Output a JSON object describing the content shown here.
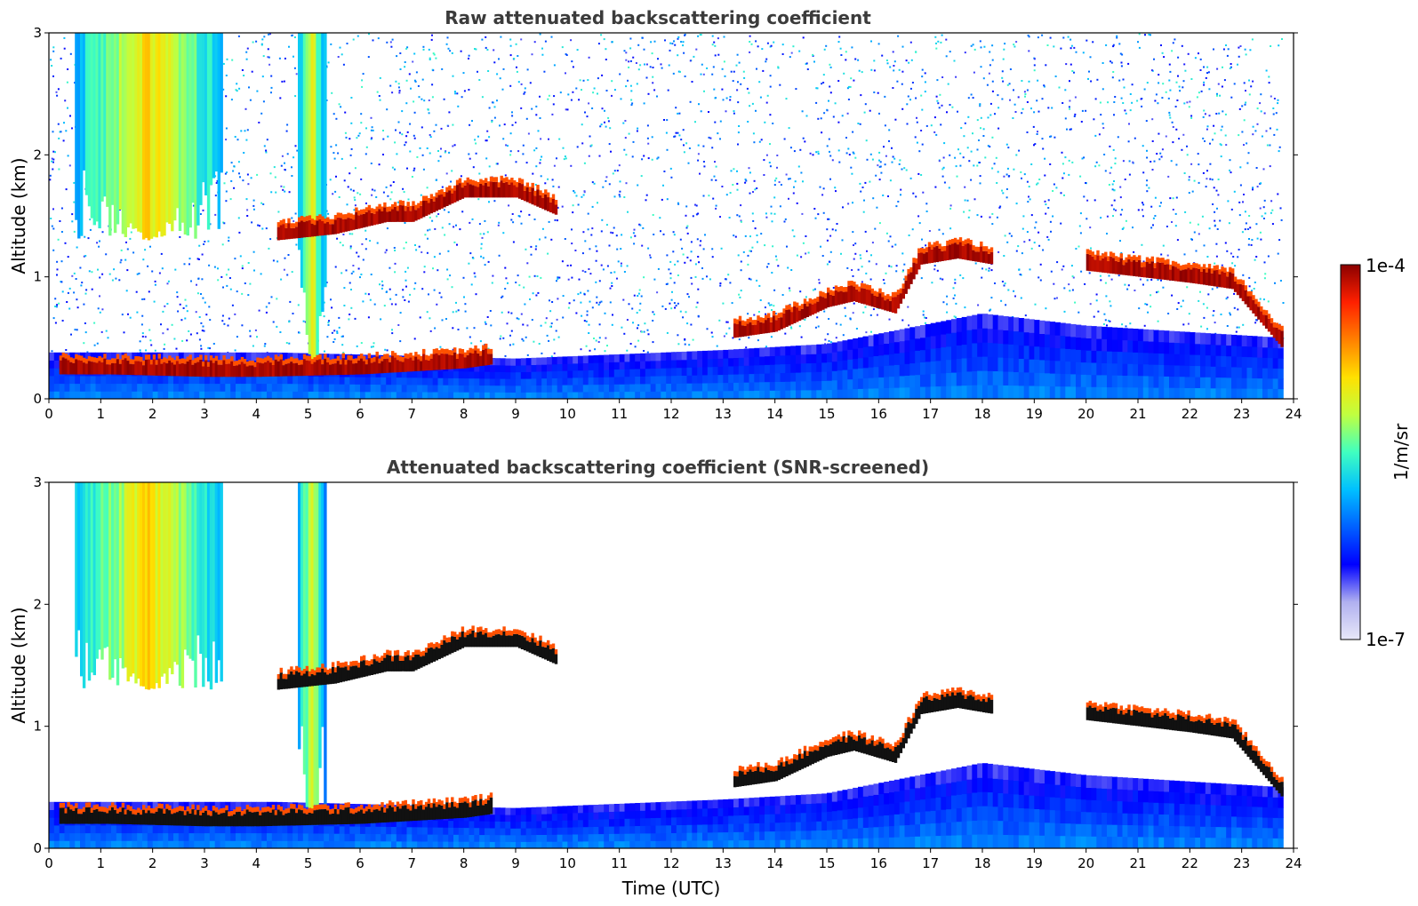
{
  "chart_data": [
    {
      "type": "heatmap",
      "id": "raw",
      "title": "Raw attenuated backscattering coefficient",
      "xlabel": "",
      "ylabel": "Altitude (km)",
      "xlim": [
        0,
        24
      ],
      "ylim": [
        0,
        3
      ],
      "xticks": [
        "0",
        "1",
        "2",
        "3",
        "4",
        "5",
        "6",
        "7",
        "8",
        "9",
        "10",
        "11",
        "12",
        "13",
        "14",
        "15",
        "16",
        "17",
        "18",
        "19",
        "20",
        "21",
        "22",
        "23",
        "24"
      ],
      "yticks": [
        "0",
        "1",
        "2",
        "3"
      ],
      "background_noise": "dense speckle above boundary layer",
      "layers": [
        {
          "name": "boundary layer",
          "segments": [
            [
              0,
              0.38
            ],
            [
              4.4,
              0.38
            ],
            [
              9,
              0.33
            ],
            [
              13,
              0.4
            ],
            [
              15,
              0.45
            ],
            [
              18,
              0.7
            ],
            [
              20,
              0.6
            ],
            [
              23.8,
              0.5
            ]
          ]
        },
        {
          "name": "cirrus plume",
          "x_range": [
            0.5,
            3.3
          ],
          "alt_range": [
            1.3,
            3.0
          ],
          "level": 0.75
        },
        {
          "name": "tall plume",
          "x_range": [
            4.8,
            5.3
          ],
          "alt_range": [
            0.2,
            3.0
          ],
          "level": 0.7
        },
        {
          "name": "cloud layer a",
          "points": [
            [
              4.4,
              1.3
            ],
            [
              5.5,
              1.35
            ],
            [
              6.5,
              1.45
            ],
            [
              7,
              1.45
            ],
            [
              8,
              1.65
            ],
            [
              9,
              1.65
            ],
            [
              9.8,
              1.5
            ]
          ],
          "level": 1.0
        },
        {
          "name": "cloud layer b",
          "points": [
            [
              13.2,
              0.5
            ],
            [
              14,
              0.55
            ],
            [
              15,
              0.75
            ],
            [
              15.5,
              0.8
            ],
            [
              16.3,
              0.7
            ],
            [
              16.8,
              1.1
            ],
            [
              17.5,
              1.15
            ],
            [
              18.2,
              1.1
            ]
          ],
          "level": 1.0
        },
        {
          "name": "cloud layer c",
          "points": [
            [
              20,
              1.05
            ],
            [
              21,
              1.0
            ],
            [
              22,
              0.95
            ],
            [
              22.8,
              0.9
            ],
            [
              23.8,
              0.4
            ]
          ],
          "level": 1.0
        },
        {
          "name": "low cloud",
          "points": [
            [
              0.2,
              0.2
            ],
            [
              1.2,
              0.2
            ],
            [
              3,
              0.18
            ],
            [
              4,
              0.18
            ],
            [
              6,
              0.2
            ],
            [
              8,
              0.25
            ],
            [
              8.5,
              0.28
            ]
          ],
          "level": 1.0
        }
      ]
    },
    {
      "type": "heatmap",
      "id": "screened",
      "title": "Attenuated backscattering coefficient (SNR-screened)",
      "xlabel": "Time (UTC)",
      "ylabel": "Altitude (km)",
      "xlim": [
        0,
        24
      ],
      "ylim": [
        0,
        3
      ],
      "xticks": [
        "0",
        "1",
        "2",
        "3",
        "4",
        "5",
        "6",
        "7",
        "8",
        "9",
        "10",
        "11",
        "12",
        "13",
        "14",
        "15",
        "16",
        "17",
        "18",
        "19",
        "20",
        "21",
        "22",
        "23",
        "24"
      ],
      "yticks": [
        "0",
        "1",
        "2",
        "3"
      ],
      "background_noise": "screened (white)",
      "layers": [
        {
          "name": "boundary layer",
          "segments": [
            [
              0,
              0.38
            ],
            [
              4.4,
              0.38
            ],
            [
              9,
              0.33
            ],
            [
              13,
              0.4
            ],
            [
              15,
              0.45
            ],
            [
              18,
              0.7
            ],
            [
              20,
              0.6
            ],
            [
              23.8,
              0.5
            ]
          ]
        },
        {
          "name": "cirrus plume",
          "x_range": [
            0.5,
            3.3
          ],
          "alt_range": [
            1.3,
            3.0
          ],
          "level": 0.75
        },
        {
          "name": "tall plume",
          "x_range": [
            4.8,
            5.3
          ],
          "alt_range": [
            0.2,
            3.0
          ],
          "level": 0.7
        },
        {
          "name": "cloud layer a",
          "points": [
            [
              4.4,
              1.3
            ],
            [
              5.5,
              1.35
            ],
            [
              6.5,
              1.45
            ],
            [
              7,
              1.45
            ],
            [
              8,
              1.65
            ],
            [
              9,
              1.65
            ],
            [
              9.8,
              1.5
            ]
          ],
          "level": 1.0
        },
        {
          "name": "cloud layer b",
          "points": [
            [
              13.2,
              0.5
            ],
            [
              14,
              0.55
            ],
            [
              15,
              0.75
            ],
            [
              15.5,
              0.8
            ],
            [
              16.3,
              0.7
            ],
            [
              16.8,
              1.1
            ],
            [
              17.5,
              1.15
            ],
            [
              18.2,
              1.1
            ]
          ],
          "level": 1.0
        },
        {
          "name": "cloud layer c",
          "points": [
            [
              20,
              1.05
            ],
            [
              21,
              1.0
            ],
            [
              22,
              0.95
            ],
            [
              22.8,
              0.9
            ],
            [
              23.8,
              0.4
            ]
          ],
          "level": 1.0
        },
        {
          "name": "low cloud",
          "points": [
            [
              0.2,
              0.2
            ],
            [
              1.2,
              0.2
            ],
            [
              3,
              0.18
            ],
            [
              4,
              0.18
            ],
            [
              6,
              0.2
            ],
            [
              8,
              0.25
            ],
            [
              8.5,
              0.28
            ]
          ],
          "level": 1.0
        }
      ]
    }
  ],
  "colorbar": {
    "label": "1/m/sr",
    "max_label": "1e-4",
    "min_label": "1e-7",
    "colors": [
      "#e8e8f8",
      "#b0b0f0",
      "#0000ff",
      "#0060ff",
      "#00c0ff",
      "#40ffc0",
      "#c0ff40",
      "#ffe000",
      "#ff8000",
      "#ff2000",
      "#8b0000"
    ]
  }
}
